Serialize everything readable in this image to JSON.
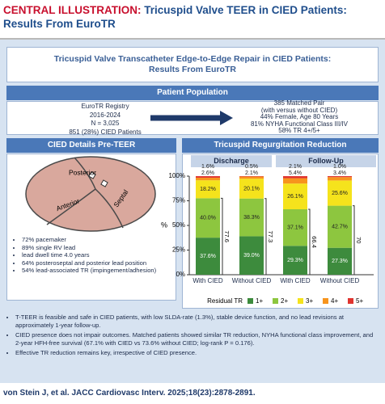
{
  "header": {
    "label": "CENTRAL ILLUSTRATION:",
    "title": "Tricuspid Valve TEER in CIED Patients: Results From EuroTR"
  },
  "figure_title": "Tricuspid Valve Transcatheter Edge-to-Edge Repair in CIED Patients: Results From EuroTR",
  "patient_population": {
    "heading": "Patient Population",
    "registry": [
      "EuroTR Registry",
      "2016-2024",
      "N = 3,025",
      "851 (28%) CIED Patients"
    ],
    "matched": [
      "385 Matched Pair",
      "(with versus without CIED)",
      "44% Female, Age 80 Years",
      "81% NYHA Functional Class III/IV",
      "58% TR 4+/5+"
    ]
  },
  "cied_details": {
    "heading": "CIED Details Pre-TEER",
    "leaflets": [
      "Posterior",
      "Anterior",
      "Septal"
    ],
    "bullets": [
      "72% pacemaker",
      "89% single RV lead",
      "lead dwell time 4.0 years",
      "64% posteroseptal and posterior lead position",
      "54% lead-associated TR (impingement/adhesion)"
    ]
  },
  "chart_data": {
    "type": "bar",
    "stacked": true,
    "title": "Tricuspid Regurgitation Reduction",
    "groups": [
      "Discharge",
      "Follow-Up"
    ],
    "categories": [
      "With CIED",
      "Without CIED",
      "With CIED",
      "Without CIED"
    ],
    "ylabel": "%",
    "ylim": [
      0,
      100
    ],
    "yticks": [
      {
        "value": 0,
        "label": "0%"
      },
      {
        "value": 25,
        "label": "25%"
      },
      {
        "value": 50,
        "label": "50%"
      },
      {
        "value": 75,
        "label": "75%"
      },
      {
        "value": 100,
        "label": "100%"
      }
    ],
    "legend_title": "Residual TR",
    "series": [
      {
        "name": "1+",
        "color": "#3d8b3d",
        "values": [
          37.6,
          39.0,
          29.3,
          27.3
        ],
        "value_labels": [
          "37.6%",
          "39.0%",
          "29.3%",
          "27.3%"
        ]
      },
      {
        "name": "2+",
        "color": "#8dc63f",
        "values": [
          40.0,
          38.3,
          37.1,
          42.7
        ],
        "value_labels": [
          "40.0%",
          "38.3%",
          "37.1%",
          "42.7%"
        ]
      },
      {
        "name": "3+",
        "color": "#f5e31c",
        "values": [
          18.2,
          20.1,
          26.1,
          25.6
        ],
        "value_labels": [
          "18.2%",
          "20.1%",
          "26.1%",
          "25.6%"
        ]
      },
      {
        "name": "4+",
        "color": "#f7941d",
        "values": [
          2.6,
          2.1,
          5.4,
          3.4
        ],
        "value_labels": [
          "2.6%",
          "2.1%",
          "5.4%",
          "3.4%"
        ]
      },
      {
        "name": "5+",
        "color": "#e0342f",
        "values": [
          1.6,
          0.5,
          2.1,
          1.0
        ],
        "value_labels": [
          "1.6%",
          "0.5%",
          "2.1%",
          "1.0%"
        ]
      }
    ],
    "bracket_values": [
      77.6,
      77.3,
      66.4,
      70.0
    ]
  },
  "conclusions": [
    "T-TEER is feasible and safe in CIED patients, with low SLDA-rate (1.3%), stable device function, and no lead revisions at approximately 1-year follow-up.",
    "CIED presence does not impair outcomes. Matched patients showed similar TR reduction, NYHA functional class improvement, and 2-year HFH-free survival (67.1% with CIED vs 73.6% without CIED; log-rank P = 0.176).",
    "Effective TR reduction remains key, irrespective of CIED presence."
  ],
  "citation": "von Stein J, et al. JACC Cardiovasc Interv. 2025;18(23):2878-2891."
}
